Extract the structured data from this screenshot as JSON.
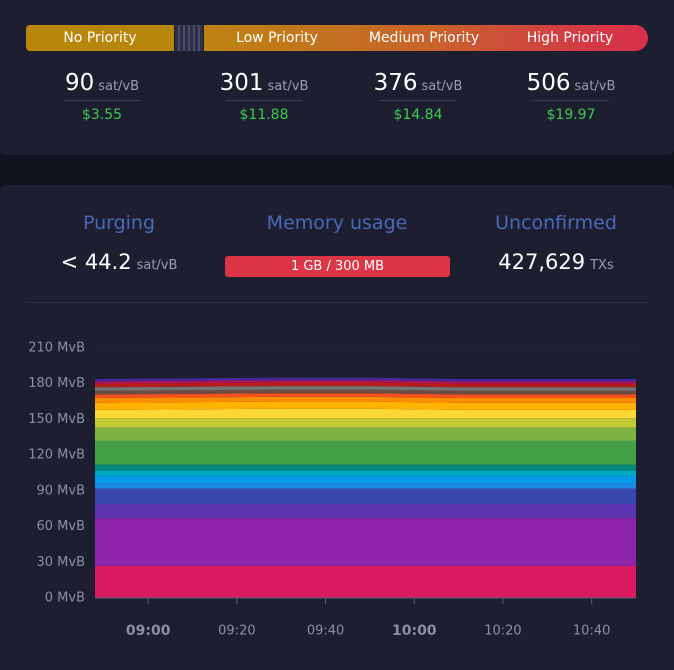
{
  "fee_bar": {
    "segments": [
      "No Priority",
      "Low Priority",
      "Medium Priority",
      "High Priority"
    ]
  },
  "fees": [
    {
      "value": 90,
      "unit": "sat/vB",
      "fiat": "$3.55"
    },
    {
      "value": 301,
      "unit": "sat/vB",
      "fiat": "$11.88"
    },
    {
      "value": 376,
      "unit": "sat/vB",
      "fiat": "$14.84"
    },
    {
      "value": 506,
      "unit": "sat/vB",
      "fiat": "$19.97"
    }
  ],
  "stats": {
    "purging": {
      "label": "Purging",
      "value": "< 44.2",
      "unit": "sat/vB"
    },
    "memory": {
      "label": "Memory usage",
      "value": "1 GB / 300 MB"
    },
    "unconfirmed": {
      "label": "Unconfirmed",
      "value": "427,629",
      "unit": "TXs"
    }
  },
  "chart_data": {
    "type": "area",
    "stacked": true,
    "grid": true,
    "x": [
      "08:48",
      "09:30",
      "09:50",
      "10:10",
      "10:50"
    ],
    "xlim": [
      "08:48",
      "10:50"
    ],
    "xticks": [
      "09:00",
      "09:20",
      "09:40",
      "10:00",
      "10:20",
      "10:40"
    ],
    "ylim": [
      0,
      210
    ],
    "yticks": [
      {
        "value": 0,
        "label": "0 MvB"
      },
      {
        "value": 30,
        "label": "30 MvB"
      },
      {
        "value": 60,
        "label": "60 MvB"
      },
      {
        "value": 90,
        "label": "90 MvB"
      },
      {
        "value": 120,
        "label": "120 MvB"
      },
      {
        "value": 150,
        "label": "150 MvB"
      },
      {
        "value": 180,
        "label": "180 MvB"
      },
      {
        "value": 210,
        "label": "210 MvB"
      }
    ],
    "series": [
      {
        "color": "#d81b60",
        "values": [
          27,
          27,
          27,
          27,
          27
        ]
      },
      {
        "color": "#8e24aa",
        "values": [
          40,
          40,
          40,
          40,
          40
        ]
      },
      {
        "color": "#5e35b1",
        "values": [
          12,
          12,
          12,
          12,
          12
        ]
      },
      {
        "color": "#3949ab",
        "values": [
          13,
          13,
          13,
          13,
          13
        ]
      },
      {
        "color": "#1e88e5",
        "values": [
          4,
          4,
          4,
          4,
          4
        ]
      },
      {
        "color": "#039be5",
        "values": [
          7,
          7,
          7,
          7,
          7
        ]
      },
      {
        "color": "#00acc1",
        "values": [
          4,
          4,
          4,
          4,
          4
        ]
      },
      {
        "color": "#00897b",
        "values": [
          5,
          5,
          5,
          5,
          5
        ]
      },
      {
        "color": "#43a047",
        "values": [
          20,
          20,
          20,
          20,
          20
        ]
      },
      {
        "color": "#7cb342",
        "values": [
          11,
          11,
          11,
          11,
          11
        ]
      },
      {
        "color": "#c0ca33",
        "values": [
          8,
          8,
          8,
          8,
          8
        ]
      },
      {
        "color": "#fdd835",
        "values": [
          7,
          8,
          8,
          7,
          7
        ]
      },
      {
        "color": "#ffb300",
        "values": [
          6,
          6,
          6,
          6,
          6
        ]
      },
      {
        "color": "#fb8c00",
        "values": [
          4,
          4,
          4,
          4,
          4
        ]
      },
      {
        "color": "#f4511e",
        "values": [
          3,
          3,
          3,
          3,
          3
        ]
      },
      {
        "color": "#6d4c41",
        "values": [
          3,
          3,
          3,
          3,
          3
        ]
      },
      {
        "color": "#757575",
        "values": [
          3,
          3,
          3,
          3,
          3
        ]
      },
      {
        "color": "#b71c1c",
        "values": [
          3,
          3,
          3,
          3,
          3
        ]
      },
      {
        "color": "#ad1457",
        "values": [
          2,
          2,
          2,
          2,
          2
        ]
      },
      {
        "color": "#4527a0",
        "values": [
          2,
          2,
          2,
          2,
          2
        ]
      }
    ]
  }
}
